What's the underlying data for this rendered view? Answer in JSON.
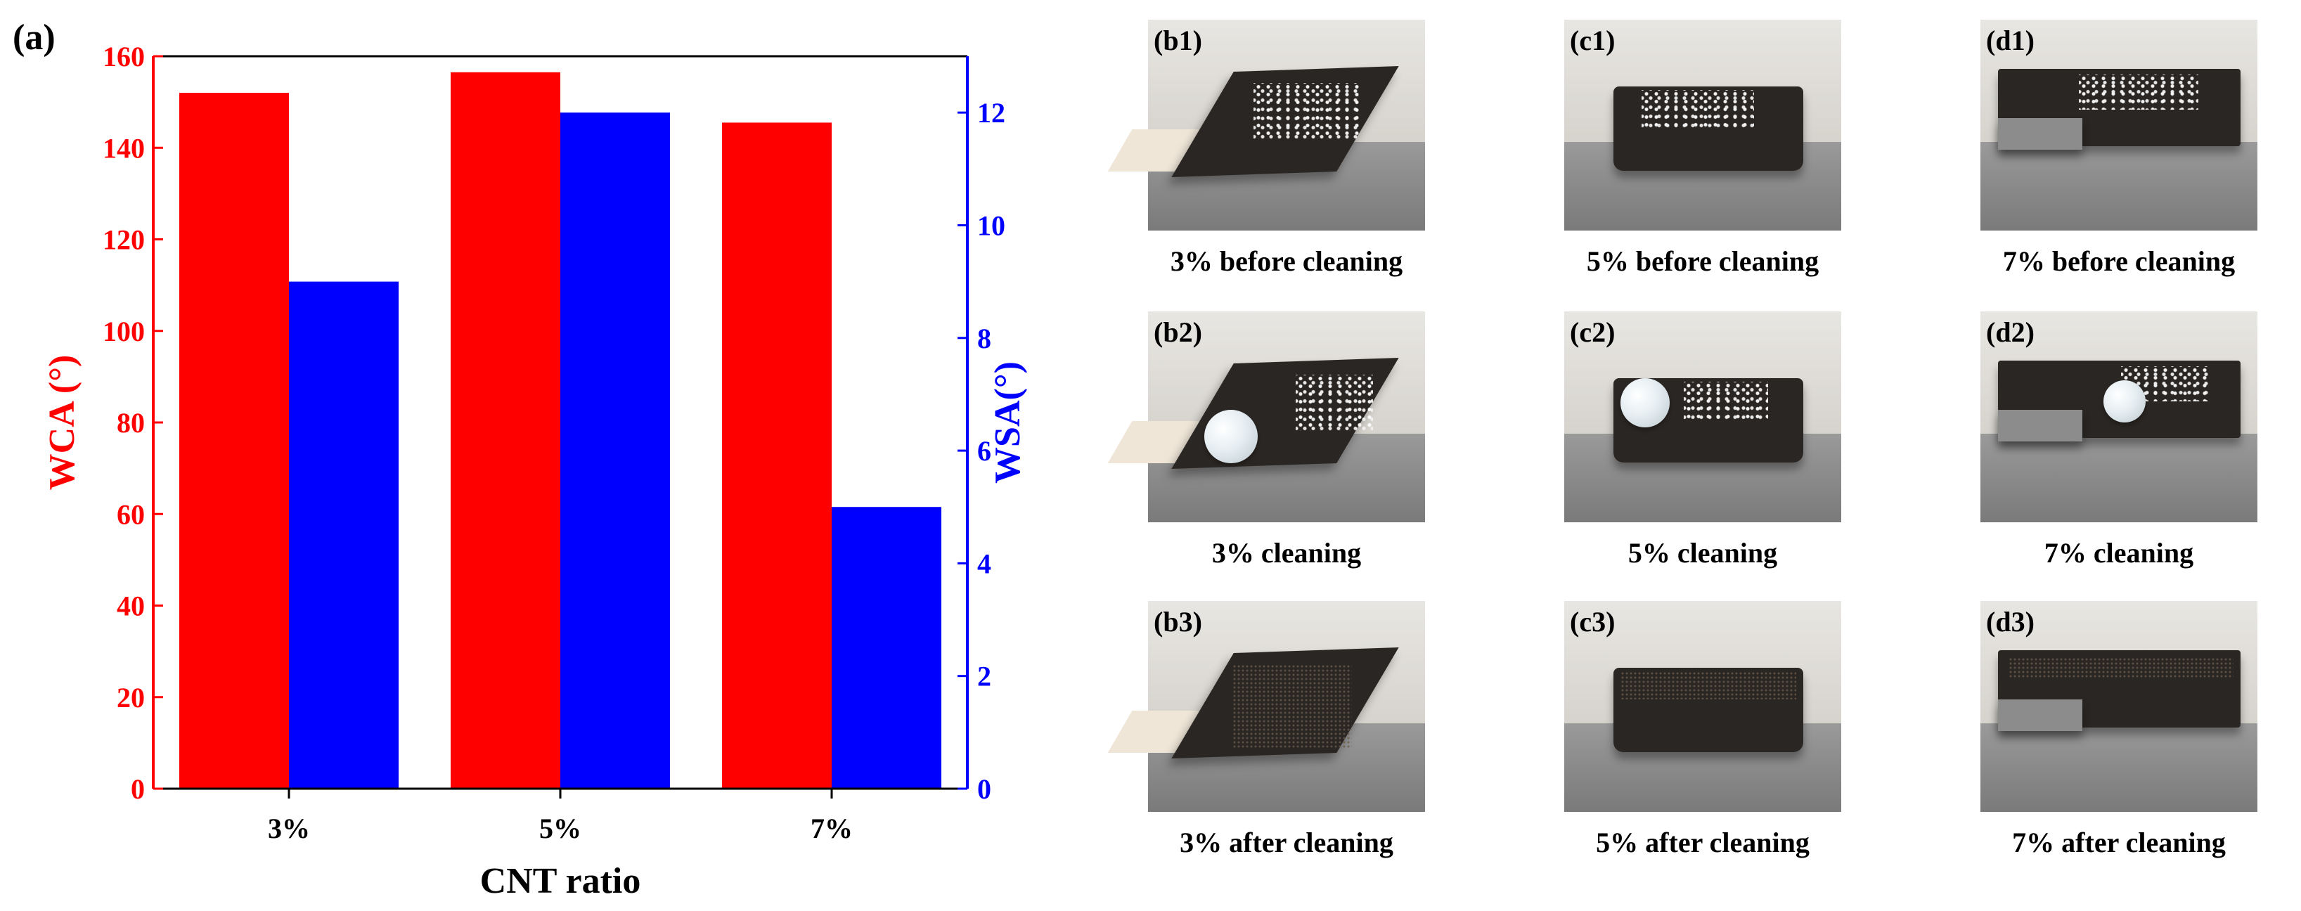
{
  "panel_label": "(a)",
  "chart_data": {
    "type": "bar",
    "categories": [
      "3%",
      "5%",
      "7%"
    ],
    "series": [
      {
        "name": "WCA",
        "axis": "left",
        "color": "#ff0000",
        "values": [
          152,
          156.5,
          145.5
        ]
      },
      {
        "name": "WSA",
        "axis": "right",
        "color": "#0000ff",
        "values": [
          9,
          12,
          5
        ]
      }
    ],
    "xlabel": "CNT ratio",
    "ylabel_left": "WCA (°)",
    "ylabel_right": "WSA(°)",
    "ylim_left": [
      0,
      160
    ],
    "ylim_right": [
      0,
      13
    ],
    "yticks_left": [
      "0",
      "20",
      "40",
      "60",
      "80",
      "100",
      "120",
      "140",
      "160"
    ],
    "yticks_right": [
      "0",
      "2",
      "4",
      "6",
      "8",
      "10",
      "12"
    ],
    "left_axis_color": "#ff0000",
    "right_axis_color": "#0000ff",
    "grid": false,
    "legend": "none"
  },
  "photos": [
    {
      "tag": "(b1)",
      "caption": "3% before cleaning",
      "variant": "b",
      "state": "before"
    },
    {
      "tag": "(c1)",
      "caption": "5% before cleaning",
      "variant": "c",
      "state": "before"
    },
    {
      "tag": "(d1)",
      "caption": "7% before cleaning",
      "variant": "d",
      "state": "before"
    },
    {
      "tag": "(b2)",
      "caption": "3% cleaning",
      "variant": "b",
      "state": "cleaning"
    },
    {
      "tag": "(c2)",
      "caption": "5% cleaning",
      "variant": "c",
      "state": "cleaning"
    },
    {
      "tag": "(d2)",
      "caption": "7% cleaning",
      "variant": "d",
      "state": "cleaning"
    },
    {
      "tag": "(b3)",
      "caption": "3% after cleaning",
      "variant": "b",
      "state": "after"
    },
    {
      "tag": "(c3)",
      "caption": "5% after cleaning",
      "variant": "c",
      "state": "after"
    },
    {
      "tag": "(d3)",
      "caption": "7% after cleaning",
      "variant": "d",
      "state": "after"
    }
  ]
}
